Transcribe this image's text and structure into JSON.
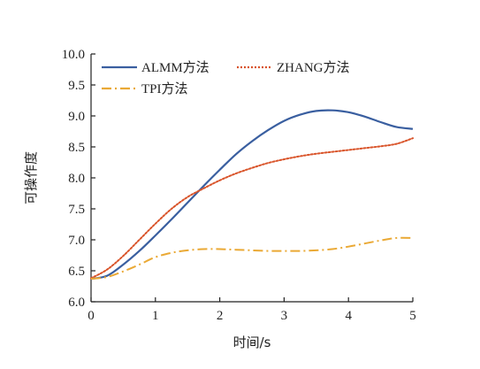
{
  "chart_data": {
    "type": "line",
    "xlabel": "时间/s",
    "ylabel": "可操作度",
    "xlim": [
      0,
      5
    ],
    "ylim": [
      6.0,
      10.0
    ],
    "xticks": [
      "0",
      "1",
      "2",
      "3",
      "4",
      "5"
    ],
    "yticks": [
      "6.0",
      "6.5",
      "7.0",
      "7.5",
      "8.0",
      "8.5",
      "9.0",
      "9.5",
      "10.0"
    ],
    "grid": false,
    "legend_position": "top",
    "series": [
      {
        "name": "ALMM方法",
        "color": "#3a5fa0",
        "style": "solid",
        "x": [
          0,
          0.25,
          0.5,
          0.75,
          1.0,
          1.25,
          1.5,
          1.75,
          2.0,
          2.25,
          2.5,
          2.75,
          3.0,
          3.25,
          3.5,
          3.75,
          4.0,
          4.25,
          4.5,
          4.75,
          5.0
        ],
        "y": [
          6.37,
          6.42,
          6.6,
          6.82,
          7.07,
          7.33,
          7.6,
          7.87,
          8.13,
          8.38,
          8.59,
          8.77,
          8.92,
          9.02,
          9.08,
          9.09,
          9.06,
          8.99,
          8.9,
          8.82,
          8.79
        ]
      },
      {
        "name": "ZHANG方法",
        "color": "#d9542a",
        "style": "dotted",
        "x": [
          0,
          0.25,
          0.5,
          0.75,
          1.0,
          1.25,
          1.5,
          1.75,
          2.0,
          2.25,
          2.5,
          2.75,
          3.0,
          3.25,
          3.5,
          3.75,
          4.0,
          4.25,
          4.5,
          4.75,
          5.0
        ],
        "y": [
          6.38,
          6.52,
          6.74,
          7.0,
          7.26,
          7.5,
          7.69,
          7.83,
          7.96,
          8.07,
          8.16,
          8.24,
          8.3,
          8.35,
          8.39,
          8.42,
          8.45,
          8.48,
          8.51,
          8.55,
          8.64
        ]
      },
      {
        "name": "TPI方法",
        "color": "#eaa935",
        "style": "dashdot",
        "x": [
          0,
          0.25,
          0.5,
          0.75,
          1.0,
          1.25,
          1.5,
          1.75,
          2.0,
          2.25,
          2.5,
          2.75,
          3.0,
          3.25,
          3.5,
          3.75,
          4.0,
          4.25,
          4.5,
          4.75,
          5.0
        ],
        "y": [
          6.37,
          6.4,
          6.49,
          6.6,
          6.72,
          6.79,
          6.83,
          6.85,
          6.85,
          6.84,
          6.83,
          6.82,
          6.82,
          6.82,
          6.83,
          6.85,
          6.89,
          6.94,
          6.99,
          7.03,
          7.03
        ]
      }
    ]
  }
}
